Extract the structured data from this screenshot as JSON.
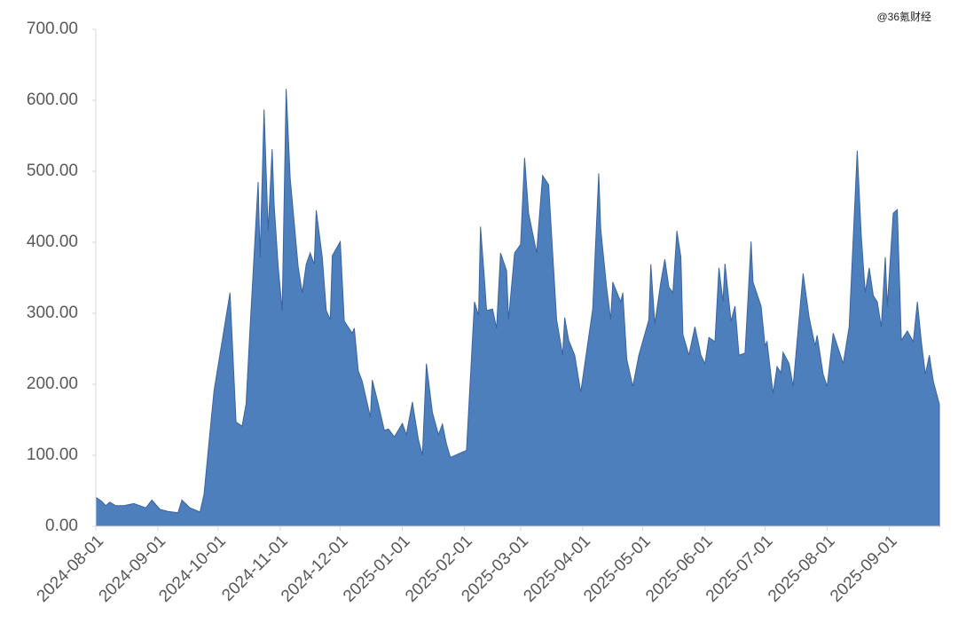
{
  "chart_data": {
    "type": "area",
    "watermark": "@36氪财经",
    "color": "#4e7fbd",
    "x": [
      "2024-08-01",
      "2024-08-04",
      "2024-08-06",
      "2024-08-08",
      "2024-08-11",
      "2024-08-15",
      "2024-08-20",
      "2024-08-23",
      "2024-08-26",
      "2024-08-29",
      "2024-09-02",
      "2024-09-06",
      "2024-09-11",
      "2024-09-13",
      "2024-09-17",
      "2024-09-22",
      "2024-09-24",
      "2024-09-26",
      "2024-09-29",
      "2024-10-07",
      "2024-10-10",
      "2024-10-13",
      "2024-10-15",
      "2024-10-17",
      "2024-10-21",
      "2024-10-22",
      "2024-10-24",
      "2024-10-26",
      "2024-10-28",
      "2024-10-29",
      "2024-10-31",
      "2024-11-02",
      "2024-11-04",
      "2024-11-06",
      "2024-11-10",
      "2024-11-12",
      "2024-11-14",
      "2024-11-16",
      "2024-11-18",
      "2024-11-19",
      "2024-11-22",
      "2024-11-24",
      "2024-11-26",
      "2024-11-27",
      "2024-12-01",
      "2024-12-03",
      "2024-12-07",
      "2024-12-08",
      "2024-12-10",
      "2024-12-12",
      "2024-12-16",
      "2024-12-17",
      "2024-12-20",
      "2024-12-23",
      "2024-12-25",
      "2024-12-28",
      "2025-01-01",
      "2025-01-03",
      "2025-01-06",
      "2025-01-09",
      "2025-01-11",
      "2025-01-13",
      "2025-01-16",
      "2025-01-19",
      "2025-01-21",
      "2025-01-23",
      "2025-01-25",
      "2025-02-02",
      "2025-02-06",
      "2025-02-08",
      "2025-02-09",
      "2025-02-11",
      "2025-02-12",
      "2025-02-15",
      "2025-02-17",
      "2025-02-19",
      "2025-02-22",
      "2025-02-23",
      "2025-02-26",
      "2025-03-01",
      "2025-03-03",
      "2025-03-05",
      "2025-03-09",
      "2025-03-10",
      "2025-03-12",
      "2025-03-15",
      "2025-03-19",
      "2025-03-22",
      "2025-03-23",
      "2025-03-25",
      "2025-03-28",
      "2025-03-31",
      "2025-04-06",
      "2025-04-09",
      "2025-04-10",
      "2025-04-13",
      "2025-04-15",
      "2025-04-16",
      "2025-04-20",
      "2025-04-21",
      "2025-04-23",
      "2025-04-26",
      "2025-04-29",
      "2025-05-04",
      "2025-05-05",
      "2025-05-07",
      "2025-05-10",
      "2025-05-12",
      "2025-05-14",
      "2025-05-16",
      "2025-05-18",
      "2025-05-20",
      "2025-05-21",
      "2025-05-24",
      "2025-05-27",
      "2025-05-30",
      "2025-06-01",
      "2025-06-03",
      "2025-06-06",
      "2025-06-08",
      "2025-06-10",
      "2025-06-11",
      "2025-06-14",
      "2025-06-16",
      "2025-06-18",
      "2025-06-21",
      "2025-06-24",
      "2025-06-25",
      "2025-06-29",
      "2025-07-01",
      "2025-07-02",
      "2025-07-05",
      "2025-07-07",
      "2025-07-09",
      "2025-07-10",
      "2025-07-13",
      "2025-07-15",
      "2025-07-20",
      "2025-07-23",
      "2025-07-26",
      "2025-07-27",
      "2025-07-30",
      "2025-08-01",
      "2025-08-04",
      "2025-08-09",
      "2025-08-12",
      "2025-08-16",
      "2025-08-18",
      "2025-08-20",
      "2025-08-22",
      "2025-08-24",
      "2025-08-26",
      "2025-08-28",
      "2025-08-30",
      "2025-08-31",
      "2025-09-03",
      "2025-09-05",
      "2025-09-07",
      "2025-09-10",
      "2025-09-13",
      "2025-09-15",
      "2025-09-17",
      "2025-09-19",
      "2025-09-21",
      "2025-09-23",
      "2025-09-26"
    ],
    "values": [
      41,
      35,
      29,
      34,
      29,
      29,
      32,
      29,
      26,
      37,
      24,
      21,
      19,
      37,
      26,
      20,
      45,
      104,
      191,
      329,
      147,
      141,
      172,
      279,
      485,
      379,
      587,
      416,
      531,
      454,
      366,
      304,
      616,
      491,
      366,
      329,
      369,
      385,
      369,
      445,
      379,
      304,
      291,
      381,
      401,
      289,
      272,
      279,
      219,
      204,
      154,
      206,
      172,
      135,
      137,
      126,
      145,
      129,
      175,
      122,
      100,
      229,
      160,
      129,
      144,
      116,
      97,
      107,
      316,
      297,
      422,
      347,
      304,
      306,
      279,
      385,
      360,
      291,
      385,
      397,
      519,
      441,
      385,
      422,
      494,
      481,
      291,
      241,
      294,
      262,
      241,
      189,
      306,
      497,
      419,
      335,
      291,
      344,
      316,
      329,
      235,
      197,
      241,
      291,
      369,
      285,
      344,
      376,
      337,
      329,
      416,
      379,
      270,
      241,
      281,
      241,
      229,
      266,
      260,
      364,
      316,
      370,
      289,
      310,
      241,
      244,
      401,
      344,
      310,
      254,
      260,
      187,
      225,
      216,
      245,
      229,
      197,
      356,
      294,
      254,
      269,
      214,
      197,
      272,
      229,
      281,
      529,
      410,
      329,
      364,
      325,
      316,
      281,
      379,
      310,
      441,
      446,
      262,
      275,
      260,
      316,
      260,
      214,
      241,
      204,
      172
    ],
    "xlim": [
      "2024-08-01",
      "2025-09-26"
    ],
    "xticks": [
      "2024-08-01",
      "2024-09-01",
      "2024-10-01",
      "2024-11-01",
      "2024-12-01",
      "2025-01-01",
      "2025-02-01",
      "2025-03-01",
      "2025-04-01",
      "2025-05-01",
      "2025-06-01",
      "2025-07-01",
      "2025-08-01",
      "2025-09-01"
    ],
    "ylim": [
      0,
      700
    ],
    "yticks": [
      {
        "value": 0,
        "label": "0.00"
      },
      {
        "value": 100,
        "label": "100.00"
      },
      {
        "value": 200,
        "label": "200.00"
      },
      {
        "value": 300,
        "label": "300.00"
      },
      {
        "value": 400,
        "label": "400.00"
      },
      {
        "value": 500,
        "label": "500.00"
      },
      {
        "value": 600,
        "label": "600.00"
      },
      {
        "value": 700,
        "label": "700.00"
      }
    ],
    "grid": false
  }
}
